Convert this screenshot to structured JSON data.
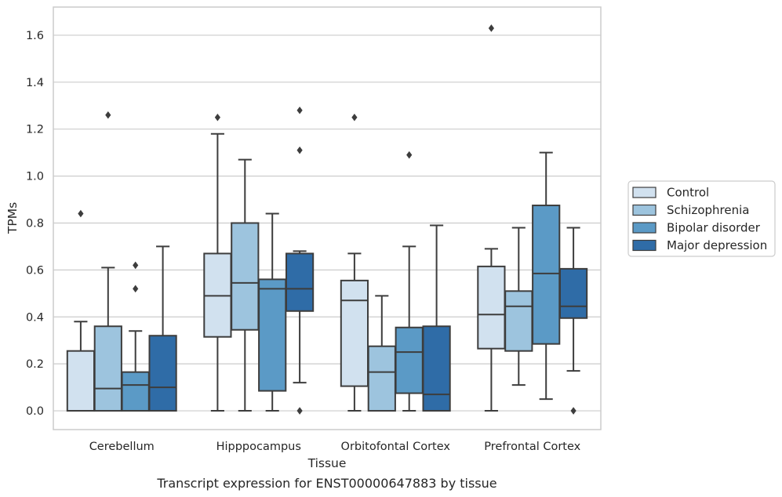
{
  "caption": "Transcript expression for ENST00000647883 by tissue",
  "chart_data": {
    "type": "boxplot",
    "xlabel": "Tissue",
    "ylabel": "TPMs",
    "ylim": [
      -0.08,
      1.72
    ],
    "yticks": [
      "0.0",
      "0.2",
      "0.4",
      "0.6",
      "0.8",
      "1.0",
      "1.2",
      "1.4",
      "1.6"
    ],
    "grid": true,
    "legend_position": "right",
    "categories": [
      "Cerebellum",
      "Hipppocampus",
      "Orbitofontal Cortex",
      "Prefrontal Cortex"
    ],
    "series": [
      {
        "name": "Control",
        "color": "#d1e1ef",
        "boxes": [
          {
            "whislo": 0.0,
            "q1": 0.0,
            "med": 0.0,
            "q3": 0.255,
            "whishi": 0.38,
            "fliers": [
              0.84
            ]
          },
          {
            "whislo": 0.0,
            "q1": 0.315,
            "med": 0.49,
            "q3": 0.67,
            "whishi": 1.18,
            "fliers": [
              1.25
            ]
          },
          {
            "whislo": 0.0,
            "q1": 0.105,
            "med": 0.47,
            "q3": 0.555,
            "whishi": 0.67,
            "fliers": [
              1.25
            ]
          },
          {
            "whislo": 0.0,
            "q1": 0.265,
            "med": 0.41,
            "q3": 0.615,
            "whishi": 0.69,
            "fliers": [
              1.63
            ]
          }
        ]
      },
      {
        "name": "Schizophrenia",
        "color": "#9dc4de",
        "boxes": [
          {
            "whislo": 0.0,
            "q1": 0.0,
            "med": 0.095,
            "q3": 0.36,
            "whishi": 0.61,
            "fliers": [
              1.26
            ]
          },
          {
            "whislo": 0.0,
            "q1": 0.345,
            "med": 0.545,
            "q3": 0.8,
            "whishi": 1.07,
            "fliers": []
          },
          {
            "whislo": 0.0,
            "q1": 0.0,
            "med": 0.165,
            "q3": 0.275,
            "whishi": 0.49,
            "fliers": []
          },
          {
            "whislo": 0.11,
            "q1": 0.255,
            "med": 0.445,
            "q3": 0.51,
            "whishi": 0.78,
            "fliers": []
          }
        ]
      },
      {
        "name": "Bipolar disorder",
        "color": "#5b9ac6",
        "boxes": [
          {
            "whislo": 0.0,
            "q1": 0.0,
            "med": 0.11,
            "q3": 0.165,
            "whishi": 0.34,
            "fliers": [
              0.52,
              0.62
            ]
          },
          {
            "whislo": 0.0,
            "q1": 0.085,
            "med": 0.52,
            "q3": 0.56,
            "whishi": 0.84,
            "fliers": []
          },
          {
            "whislo": 0.0,
            "q1": 0.075,
            "med": 0.25,
            "q3": 0.355,
            "whishi": 0.7,
            "fliers": [
              1.09
            ]
          },
          {
            "whislo": 0.05,
            "q1": 0.285,
            "med": 0.585,
            "q3": 0.875,
            "whishi": 1.1,
            "fliers": []
          }
        ]
      },
      {
        "name": "Major depression",
        "color": "#2f6ca7",
        "boxes": [
          {
            "whislo": 0.0,
            "q1": 0.0,
            "med": 0.1,
            "q3": 0.32,
            "whishi": 0.7,
            "fliers": []
          },
          {
            "whislo": 0.12,
            "q1": 0.425,
            "med": 0.52,
            "q3": 0.67,
            "whishi": 0.68,
            "fliers": [
              0.0,
              1.11,
              1.28
            ]
          },
          {
            "whislo": 0.0,
            "q1": 0.0,
            "med": 0.07,
            "q3": 0.36,
            "whishi": 0.79,
            "fliers": []
          },
          {
            "whislo": 0.17,
            "q1": 0.395,
            "med": 0.445,
            "q3": 0.605,
            "whishi": 0.78,
            "fliers": [
              0.0
            ]
          }
        ]
      }
    ]
  }
}
